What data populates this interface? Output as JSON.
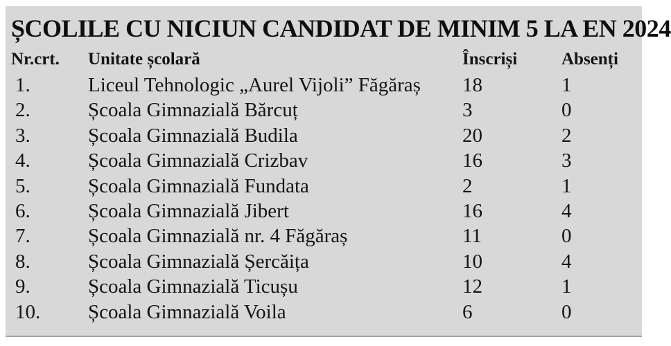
{
  "colors": {
    "panel_bg": "#d8d8d8",
    "page_bg": "#ffffff",
    "text": "#141414",
    "panel_bottom_edge": "#a3a3a3"
  },
  "table": {
    "title": "ȘCOLILE CU NICIUN CANDIDAT DE MINIM 5 LA EN 2024",
    "columns": [
      "Nr.crt.",
      "Unitate școlară",
      "Înscriși",
      "Absenți"
    ],
    "rows": [
      {
        "nr": "1.",
        "unitate": "Liceul Tehnologic „Aurel Vijoli” Făgăraș",
        "inscrisi": "18",
        "absenti": "1"
      },
      {
        "nr": "2.",
        "unitate": "Școala Gimnazială Bărcuț",
        "inscrisi": "3",
        "absenti": "0"
      },
      {
        "nr": "3.",
        "unitate": "Școala Gimnazială Budila",
        "inscrisi": "20",
        "absenti": "2"
      },
      {
        "nr": "4.",
        "unitate": "Școala Gimnazială Crizbav",
        "inscrisi": "16",
        "absenti": "3"
      },
      {
        "nr": "5.",
        "unitate": "Școala Gimnazială Fundata",
        "inscrisi": "2",
        "absenti": "1"
      },
      {
        "nr": "6.",
        "unitate": "Școala Gimnazială Jibert",
        "inscrisi": "16",
        "absenti": "4"
      },
      {
        "nr": "7.",
        "unitate": "Școala Gimnazială nr. 4 Făgăraș",
        "inscrisi": "11",
        "absenti": "0"
      },
      {
        "nr": "8.",
        "unitate": "Școala Gimnazială Șercăița",
        "inscrisi": "10",
        "absenti": "4"
      },
      {
        "nr": "9.",
        "unitate": "Școala Gimnazială Ticușu",
        "inscrisi": "12",
        "absenti": "1"
      },
      {
        "nr": "10.",
        "unitate": "Școala Gimnazială Voila",
        "inscrisi": "6",
        "absenti": "0"
      }
    ]
  }
}
